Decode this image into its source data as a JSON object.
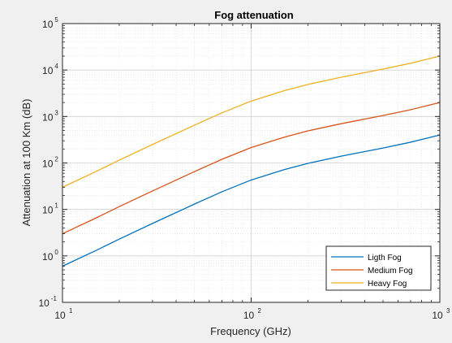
{
  "chart_data": {
    "type": "line",
    "title": "Fog attenuation",
    "xlabel": "Frequency (GHz)",
    "ylabel": "Attenuation at 100 Km (dB)",
    "xscale": "log",
    "yscale": "log",
    "xlim": [
      10,
      1000
    ],
    "ylim": [
      0.1,
      100000
    ],
    "x_ticks": [
      {
        "base": "10",
        "exp": "1"
      },
      {
        "base": "10",
        "exp": "2"
      },
      {
        "base": "10",
        "exp": "3"
      }
    ],
    "y_ticks": [
      {
        "base": "10",
        "exp": "-1"
      },
      {
        "base": "10",
        "exp": "0"
      },
      {
        "base": "10",
        "exp": "1"
      },
      {
        "base": "10",
        "exp": "2"
      },
      {
        "base": "10",
        "exp": "3"
      },
      {
        "base": "10",
        "exp": "4"
      },
      {
        "base": "10",
        "exp": "5"
      }
    ],
    "grid": true,
    "minor_grid": true,
    "legend_position": "bottom-right",
    "x": [
      10,
      15,
      20,
      30,
      50,
      70,
      100,
      150,
      200,
      300,
      500,
      700,
      1000
    ],
    "series": [
      {
        "name": "Ligth Fog",
        "color": "#0072bd",
        "values": [
          0.6,
          1.3,
          2.3,
          5.0,
          13,
          24,
          43,
          72,
          98,
          140,
          210,
          280,
          400
        ]
      },
      {
        "name": "Medium Fog",
        "color": "#d95319",
        "values": [
          3,
          6.5,
          11.5,
          25,
          65,
          120,
          215,
          360,
          490,
          700,
          1050,
          1400,
          2000
        ]
      },
      {
        "name": "Heavy Fog",
        "color": "#edb120",
        "values": [
          30,
          65,
          115,
          250,
          650,
          1200,
          2150,
          3600,
          4900,
          7000,
          10500,
          14000,
          20000
        ]
      }
    ]
  }
}
